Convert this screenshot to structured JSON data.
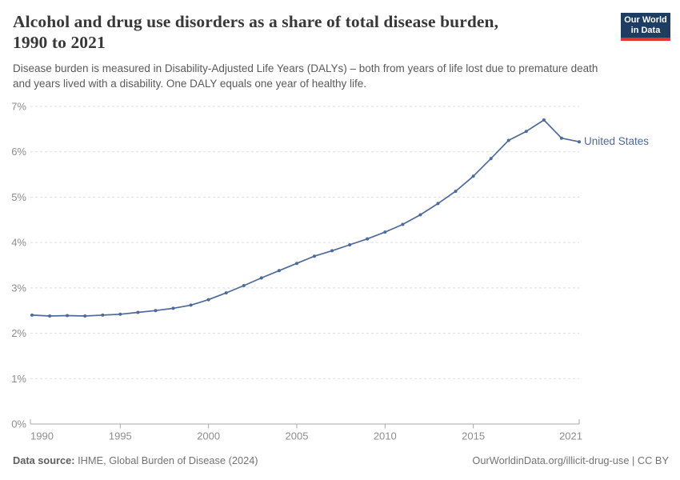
{
  "header": {
    "title_line1": "Alcohol and drug use disorders as a share of total disease burden,",
    "title_line2": "1990 to 2021",
    "subtitle_line1": "Disease burden is measured in Disability-Adjusted Life Years (DALYs) – both from years of life lost due to premature death",
    "subtitle_line2": "and years lived with a disability. One DALY equals one year of healthy life."
  },
  "logo": {
    "line1": "Our World",
    "line2": "in Data",
    "bg_color": "#1d3d63",
    "stripe_color": "#e0362f"
  },
  "chart_data": {
    "type": "line",
    "title": "Alcohol and drug use disorders as a share of total disease burden, 1990 to 2021",
    "xlabel": "",
    "ylabel": "",
    "ylim": [
      0,
      7
    ],
    "ytick_suffix": "%",
    "yticks": [
      0,
      1,
      2,
      3,
      4,
      5,
      6,
      7
    ],
    "xticks": [
      1990,
      1995,
      2000,
      2005,
      2010,
      2015,
      2021
    ],
    "grid": "horizontal-dashed",
    "legend_position": "end-of-line-label",
    "x": [
      1990,
      1991,
      1992,
      1993,
      1994,
      1995,
      1996,
      1997,
      1998,
      1999,
      2000,
      2001,
      2002,
      2003,
      2004,
      2005,
      2006,
      2007,
      2008,
      2009,
      2010,
      2011,
      2012,
      2013,
      2014,
      2015,
      2016,
      2017,
      2018,
      2019,
      2020,
      2021
    ],
    "series": [
      {
        "name": "United States",
        "color": "#4c6a9c",
        "values": [
          2.4,
          2.38,
          2.39,
          2.38,
          2.4,
          2.42,
          2.46,
          2.5,
          2.55,
          2.62,
          2.74,
          2.89,
          3.05,
          3.22,
          3.38,
          3.54,
          3.7,
          3.82,
          3.95,
          4.08,
          4.23,
          4.4,
          4.61,
          4.86,
          5.13,
          5.46,
          5.85,
          6.25,
          6.45,
          6.7,
          6.3,
          6.22
        ]
      }
    ],
    "axis_color": "#a8a8a8",
    "grid_color": "#dedede"
  },
  "footer": {
    "source_label": "Data source:",
    "source_value": "IHME, Global Burden of Disease (2024)",
    "link_text": "OurWorldinData.org/illicit-drug-use | CC BY"
  }
}
